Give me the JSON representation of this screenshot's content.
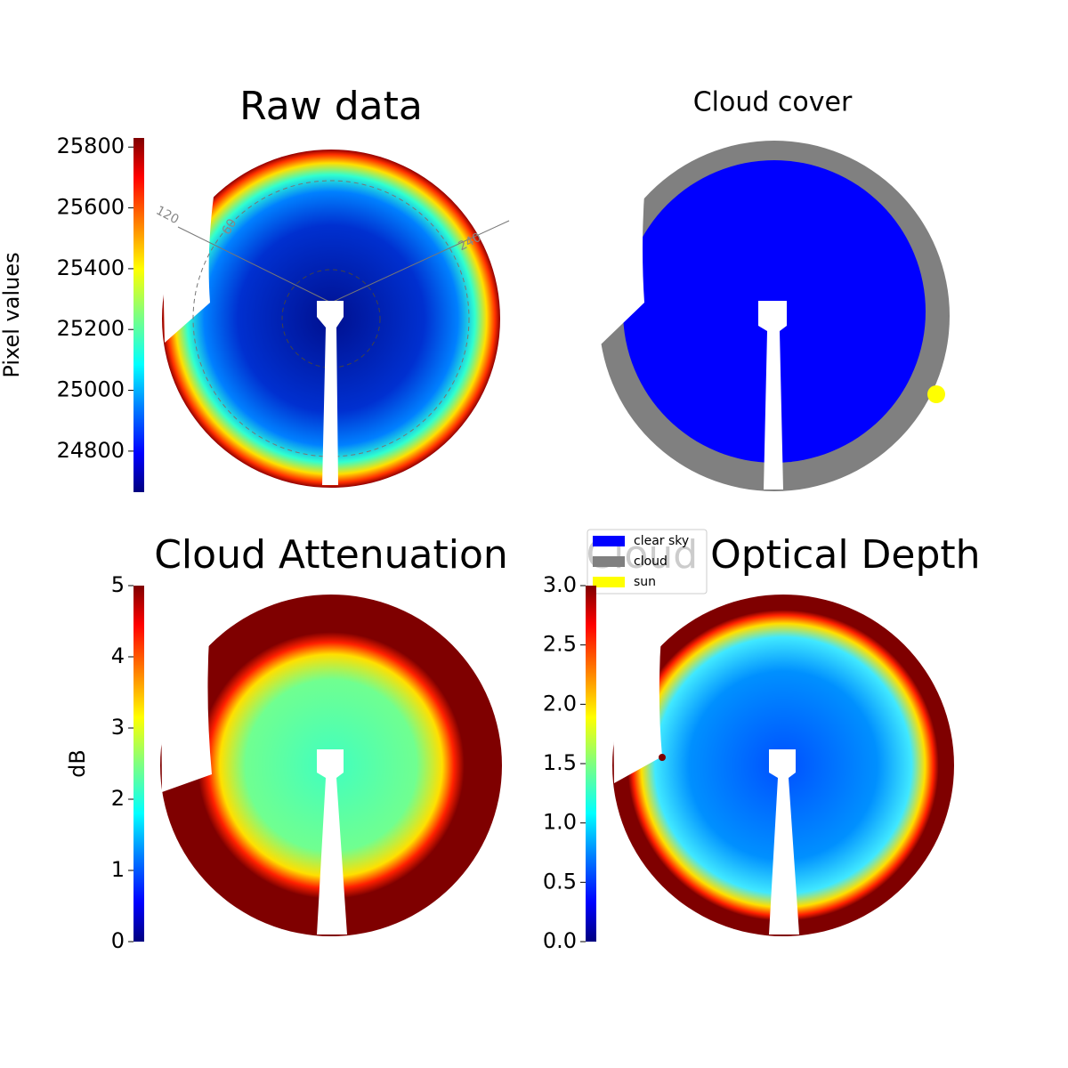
{
  "chart_data": [
    {
      "type": "image",
      "title": "Raw data",
      "cmap": "jet",
      "colorbar_label": "Pixel values",
      "clim": [
        24665,
        25830
      ],
      "cticks": [
        24800,
        25000,
        25200,
        25400,
        25600,
        25800
      ],
      "annotations": [
        "120",
        "60",
        "240"
      ]
    },
    {
      "type": "image",
      "title": "Cloud cover",
      "legend": [
        {
          "name": "clear sky",
          "color": "#0000ff"
        },
        {
          "name": "cloud",
          "color": "#808080"
        },
        {
          "name": "sun",
          "color": "#ffff00"
        }
      ]
    },
    {
      "type": "image",
      "title": "Cloud Attenuation",
      "cmap": "jet",
      "colorbar_label": "dB",
      "clim": [
        0,
        5
      ],
      "cticks": [
        0,
        1,
        2,
        3,
        4,
        5
      ]
    },
    {
      "type": "image",
      "title": "Cloud Optical Depth",
      "cmap": "jet",
      "clim": [
        0,
        3
      ],
      "cticks": [
        {
          "value": 0,
          "label": "0.0"
        },
        0.5,
        {
          "value": 1,
          "label": "1.0"
        },
        1.5,
        {
          "value": 2,
          "label": "2.0"
        },
        2.5,
        {
          "value": 3,
          "label": "3.0"
        }
      ]
    }
  ]
}
